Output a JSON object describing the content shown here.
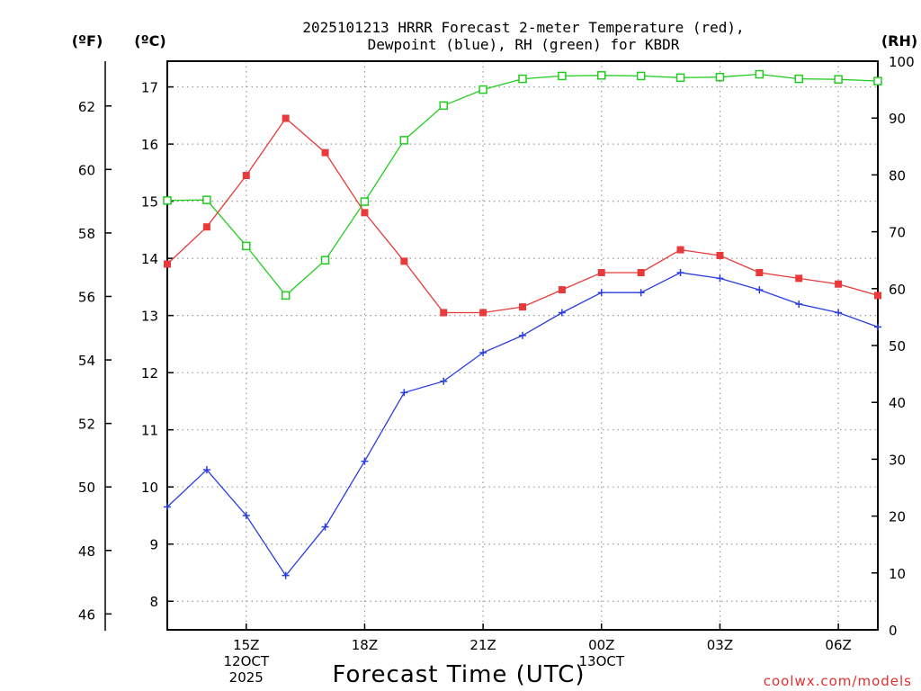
{
  "title_line1": "2025101213 HRRR Forecast 2-meter Temperature (red),",
  "title_line2": "Dewpoint (blue), RH (green) for KBDR",
  "units": {
    "f": "(ºF)",
    "c": "(ºC)",
    "rh": "(RH)"
  },
  "xlabel": "Forecast Time (UTC)",
  "credit": "coolwx.com/models",
  "colors": {
    "temperature": "#e83a3a",
    "dewpoint": "#2a3ee0",
    "rh": "#22cc22"
  },
  "chart_data": {
    "type": "line",
    "x": [
      13,
      14,
      15,
      16,
      17,
      18,
      19,
      20,
      21,
      22,
      23,
      24,
      25,
      26,
      27,
      28,
      29,
      30,
      31
    ],
    "xlim": [
      13,
      31
    ],
    "x_ticks": [
      {
        "x": 15,
        "lines": [
          "15Z",
          "12OCT",
          "2025"
        ]
      },
      {
        "x": 18,
        "lines": [
          "18Z"
        ]
      },
      {
        "x": 21,
        "lines": [
          "21Z"
        ]
      },
      {
        "x": 24,
        "lines": [
          "00Z",
          "13OCT"
        ]
      },
      {
        "x": 27,
        "lines": [
          "03Z"
        ]
      },
      {
        "x": 30,
        "lines": [
          "06Z"
        ]
      }
    ],
    "y_celsius": {
      "min": 7.5,
      "max": 17.45,
      "ticks": [
        8,
        9,
        10,
        11,
        12,
        13,
        14,
        15,
        16,
        17
      ]
    },
    "y_fahrenheit": {
      "ticks": [
        46,
        48,
        50,
        52,
        54,
        56,
        58,
        60,
        62
      ]
    },
    "y_rh": {
      "min": 0,
      "max": 100,
      "ticks": [
        0,
        10,
        20,
        30,
        40,
        50,
        60,
        70,
        80,
        90,
        100
      ]
    },
    "series": [
      {
        "name": "Temperature",
        "axis": "celsius",
        "marker": "filled-square",
        "values": [
          13.9,
          14.55,
          15.45,
          16.45,
          15.85,
          14.8,
          13.95,
          13.05,
          13.05,
          13.15,
          13.45,
          13.75,
          13.75,
          14.15,
          14.05,
          13.75,
          13.65,
          13.55,
          13.35
        ]
      },
      {
        "name": "Dewpoint",
        "axis": "celsius",
        "marker": "plus",
        "values": [
          9.65,
          10.3,
          9.5,
          8.45,
          9.3,
          10.45,
          11.65,
          11.85,
          12.35,
          12.65,
          13.05,
          13.4,
          13.4,
          13.75,
          13.65,
          13.45,
          13.2,
          13.05,
          12.8
        ]
      },
      {
        "name": "RH",
        "axis": "rh",
        "marker": "open-square",
        "values": [
          75.5,
          75.6,
          67.5,
          58.8,
          65,
          75.3,
          86.1,
          92.2,
          95,
          96.9,
          97.4,
          97.5,
          97.4,
          97.1,
          97.2,
          97.7,
          96.9,
          96.8,
          96.5
        ]
      }
    ]
  }
}
